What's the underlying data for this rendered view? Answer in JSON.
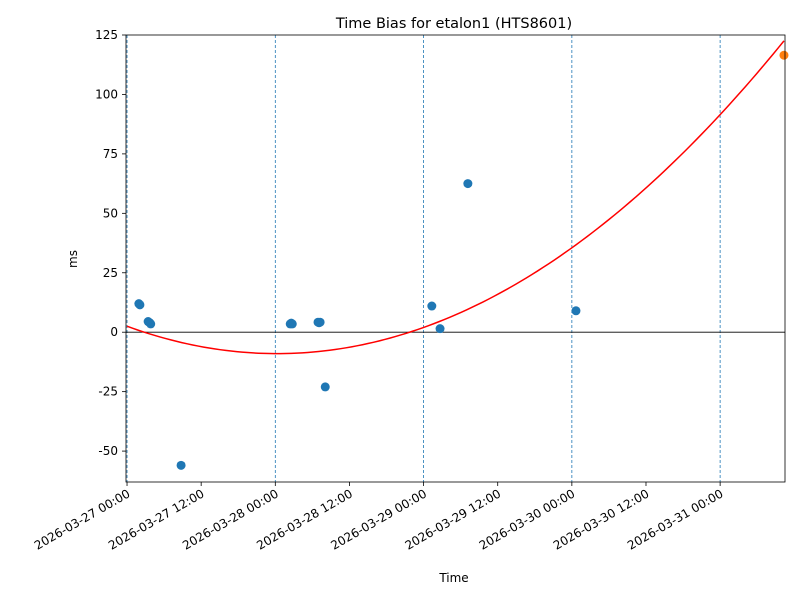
{
  "chart_data": {
    "type": "scatter",
    "title": "Time Bias for etalon1 (HTS8601)",
    "xlabel": "Time",
    "ylabel": "ms",
    "xlim": [
      "2026-03-26 23:50",
      "2026-03-31 10:30"
    ],
    "ylim": [
      -63,
      125
    ],
    "yticks": [
      -50,
      -25,
      0,
      25,
      50,
      75,
      100,
      125
    ],
    "xticks": [
      "2026-03-27 00:00",
      "2026-03-27 12:00",
      "2026-03-28 00:00",
      "2026-03-28 12:00",
      "2026-03-29 00:00",
      "2026-03-29 12:00",
      "2026-03-30 00:00",
      "2026-03-30 12:00",
      "2026-03-31 00:00"
    ],
    "vlines": [
      "2026-03-27 00:00",
      "2026-03-28 00:00",
      "2026-03-29 00:00",
      "2026-03-30 00:00",
      "2026-03-31 00:00"
    ],
    "zero_line": 0,
    "grid": false,
    "points": [
      {
        "x": "2026-03-27 01:55",
        "y": 12
      },
      {
        "x": "2026-03-27 02:05",
        "y": 11.5
      },
      {
        "x": "2026-03-27 03:25",
        "y": 4.5
      },
      {
        "x": "2026-03-27 03:40",
        "y": 4
      },
      {
        "x": "2026-03-27 03:50",
        "y": 3.5
      },
      {
        "x": "2026-03-27 08:45",
        "y": -56
      },
      {
        "x": "2026-03-28 02:25",
        "y": 3.5
      },
      {
        "x": "2026-03-28 02:35",
        "y": 3.8
      },
      {
        "x": "2026-03-28 02:45",
        "y": 3.5
      },
      {
        "x": "2026-03-28 06:55",
        "y": 4.2
      },
      {
        "x": "2026-03-28 07:05",
        "y": 4
      },
      {
        "x": "2026-03-28 07:15",
        "y": 4.2
      },
      {
        "x": "2026-03-28 08:05",
        "y": -23
      },
      {
        "x": "2026-03-29 01:20",
        "y": 11
      },
      {
        "x": "2026-03-29 02:40",
        "y": 1.5
      },
      {
        "x": "2026-03-29 07:10",
        "y": 62.5
      },
      {
        "x": "2026-03-30 00:40",
        "y": 9
      }
    ],
    "prediction": {
      "x": "2026-03-31 10:20",
      "y": 116.5
    },
    "fit": {
      "type": "quadratic",
      "points": [
        {
          "x": "2026-03-27 00:00",
          "y": 2.5
        },
        {
          "x": "2026-03-28 00:00",
          "y": -9
        },
        {
          "x": "2026-03-29 00:00",
          "y": 2
        },
        {
          "x": "2026-03-31 10:20",
          "y": 116.5
        }
      ]
    },
    "colors": {
      "points": "#1f77b4",
      "prediction": "#ff7f0e",
      "fit": "#ff0000",
      "vlines": "#1f77b4",
      "zero_line": "#000000"
    }
  }
}
